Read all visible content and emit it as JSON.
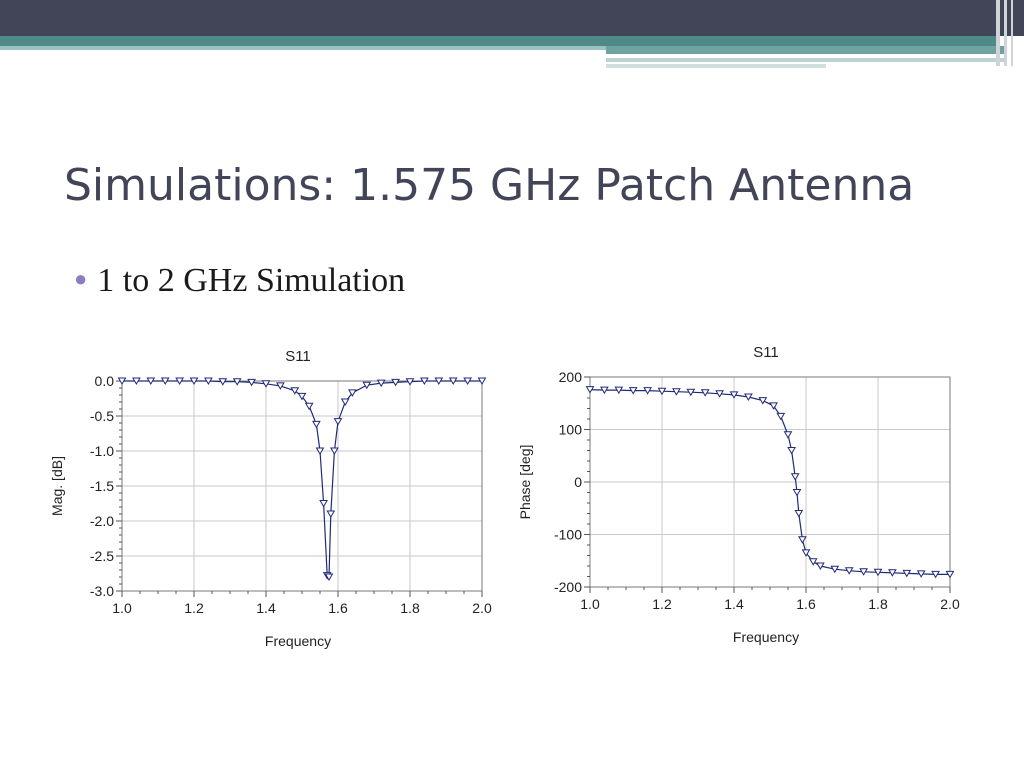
{
  "slide": {
    "title": "Simulations: 1.575 GHz Patch Antenna",
    "bullet": "1 to 2 GHz Simulation",
    "bullet_icon": "bullet-dot-icon",
    "colors": {
      "header": "#424558",
      "accent": "#4e8a88",
      "bullet": "#8e7cc3",
      "trace": "#1f2a78"
    }
  },
  "chart_data": [
    {
      "type": "line",
      "title": "S11",
      "xlabel": "Frequency",
      "ylabel": "Mag. [dB]",
      "xlim": [
        1.0,
        2.0
      ],
      "ylim": [
        -3.0,
        0.0
      ],
      "xticks": [
        1.0,
        1.2,
        1.4,
        1.6,
        1.8,
        2.0
      ],
      "yticks": [
        0.0,
        -0.5,
        -1.0,
        -1.5,
        -2.0,
        -2.5,
        -3.0
      ],
      "xtick_labels": [
        "1.0",
        "1.2",
        "1.4",
        "1.6",
        "1.8",
        "2.0"
      ],
      "ytick_labels": [
        "0.0",
        "-0.5",
        "-1.0",
        "-1.5",
        "-2.0",
        "-2.5",
        "-3.0"
      ],
      "grid": true,
      "marker": "down-triangle",
      "series": [
        {
          "x": [
            1.0,
            1.04,
            1.08,
            1.12,
            1.16,
            1.2,
            1.24,
            1.28,
            1.32,
            1.36,
            1.4,
            1.44,
            1.48,
            1.5,
            1.52,
            1.54,
            1.55,
            1.56,
            1.57,
            1.575,
            1.58,
            1.59,
            1.6,
            1.62,
            1.64,
            1.68,
            1.72,
            1.76,
            1.8,
            1.84,
            1.88,
            1.92,
            1.96,
            2.0
          ],
          "y": [
            0.0,
            0.0,
            0.0,
            0.0,
            0.0,
            0.0,
            0.0,
            -0.01,
            -0.01,
            -0.02,
            -0.04,
            -0.07,
            -0.14,
            -0.22,
            -0.36,
            -0.62,
            -1.0,
            -1.75,
            -2.78,
            -2.8,
            -1.9,
            -1.0,
            -0.58,
            -0.3,
            -0.17,
            -0.06,
            -0.03,
            -0.02,
            -0.01,
            0.0,
            0.0,
            0.0,
            0.0,
            0.0
          ]
        }
      ]
    },
    {
      "type": "line",
      "title": "S11",
      "xlabel": "Frequency",
      "ylabel": "Phase [deg]",
      "xlim": [
        1.0,
        2.0
      ],
      "ylim": [
        -200,
        200
      ],
      "xticks": [
        1.0,
        1.2,
        1.4,
        1.6,
        1.8,
        2.0
      ],
      "yticks": [
        200,
        100,
        0,
        -100,
        -200
      ],
      "xtick_labels": [
        "1.0",
        "1.2",
        "1.4",
        "1.6",
        "1.8",
        "2.0"
      ],
      "ytick_labels": [
        "200",
        "100",
        "0",
        "-100",
        "-200"
      ],
      "grid": true,
      "marker": "down-triangle",
      "series": [
        {
          "x": [
            1.0,
            1.04,
            1.08,
            1.12,
            1.16,
            1.2,
            1.24,
            1.28,
            1.32,
            1.36,
            1.4,
            1.44,
            1.48,
            1.51,
            1.53,
            1.55,
            1.56,
            1.57,
            1.575,
            1.58,
            1.59,
            1.6,
            1.62,
            1.64,
            1.68,
            1.72,
            1.76,
            1.8,
            1.84,
            1.88,
            1.92,
            1.96,
            2.0
          ],
          "y": [
            176,
            175,
            175,
            174,
            174,
            173,
            172,
            171,
            170,
            168,
            166,
            162,
            155,
            145,
            125,
            90,
            60,
            10,
            -20,
            -60,
            -110,
            -135,
            -152,
            -160,
            -166,
            -169,
            -171,
            -172,
            -173,
            -174,
            -175,
            -176,
            -176
          ]
        }
      ]
    }
  ]
}
